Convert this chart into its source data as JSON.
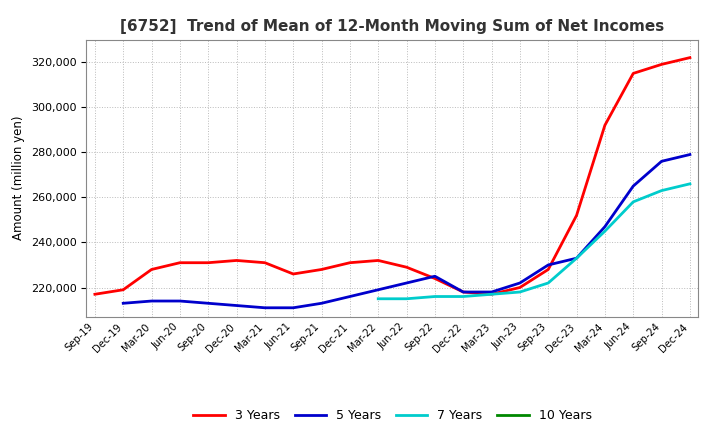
{
  "title": "[6752]  Trend of Mean of 12-Month Moving Sum of Net Incomes",
  "ylabel": "Amount (million yen)",
  "line_colors": {
    "3 Years": "#FF0000",
    "5 Years": "#0000CC",
    "7 Years": "#00CCCC",
    "10 Years": "#008800"
  },
  "x_labels": [
    "Sep-19",
    "Dec-19",
    "Mar-20",
    "Jun-20",
    "Sep-20",
    "Dec-20",
    "Mar-21",
    "Jun-21",
    "Sep-21",
    "Dec-21",
    "Mar-22",
    "Jun-22",
    "Sep-22",
    "Dec-22",
    "Mar-23",
    "Jun-23",
    "Sep-23",
    "Dec-23",
    "Mar-24",
    "Jun-24",
    "Sep-24",
    "Dec-24"
  ],
  "y_3yr": [
    217000,
    219000,
    228000,
    231000,
    231000,
    232000,
    231000,
    226000,
    228000,
    231000,
    232000,
    229000,
    224000,
    218000,
    217000,
    220000,
    228000,
    252000,
    292000,
    315000,
    319000,
    322000
  ],
  "y_5yr_x": [
    1,
    2,
    3,
    4,
    5,
    6,
    7,
    8,
    9,
    10,
    11,
    12,
    13,
    14,
    15,
    16,
    17,
    18,
    19,
    20,
    21
  ],
  "y_5yr_y": [
    213000,
    214000,
    214000,
    213000,
    212000,
    211000,
    211000,
    213000,
    216000,
    219000,
    222000,
    225000,
    218000,
    218000,
    222000,
    230000,
    233000,
    247000,
    265000,
    276000,
    279000
  ],
  "y_7yr_x": [
    10,
    11,
    12,
    13,
    14,
    15,
    16,
    17,
    18,
    19,
    20,
    21
  ],
  "y_7yr_y": [
    215000,
    215000,
    216000,
    216000,
    217000,
    218000,
    222000,
    233000,
    245000,
    258000,
    263000,
    266000
  ],
  "ylim": [
    207000,
    330000
  ],
  "yticks": [
    220000,
    240000,
    260000,
    280000,
    300000,
    320000
  ],
  "background_color": "#FFFFFF",
  "grid_color": "#BBBBBB"
}
